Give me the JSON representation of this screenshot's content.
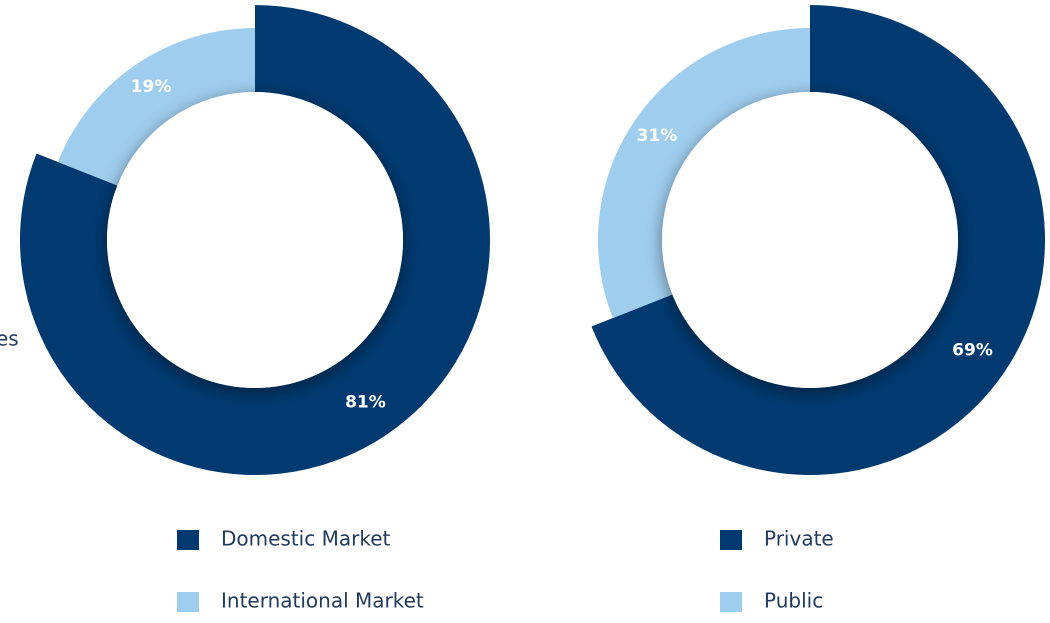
{
  "chart_data": [
    {
      "type": "pie",
      "donut": true,
      "annotation": "es",
      "categories": [
        "Domestic Market",
        "International Market"
      ],
      "values": [
        81,
        19
      ],
      "value_labels": [
        "81%",
        "19%"
      ],
      "colors": [
        "#003a70",
        "#9fcdee"
      ]
    },
    {
      "type": "pie",
      "donut": true,
      "categories": [
        "Private",
        "Public"
      ],
      "values": [
        69,
        31
      ],
      "value_labels": [
        "69%",
        "31%"
      ],
      "colors": [
        "#003a70",
        "#9fcdee"
      ]
    }
  ]
}
